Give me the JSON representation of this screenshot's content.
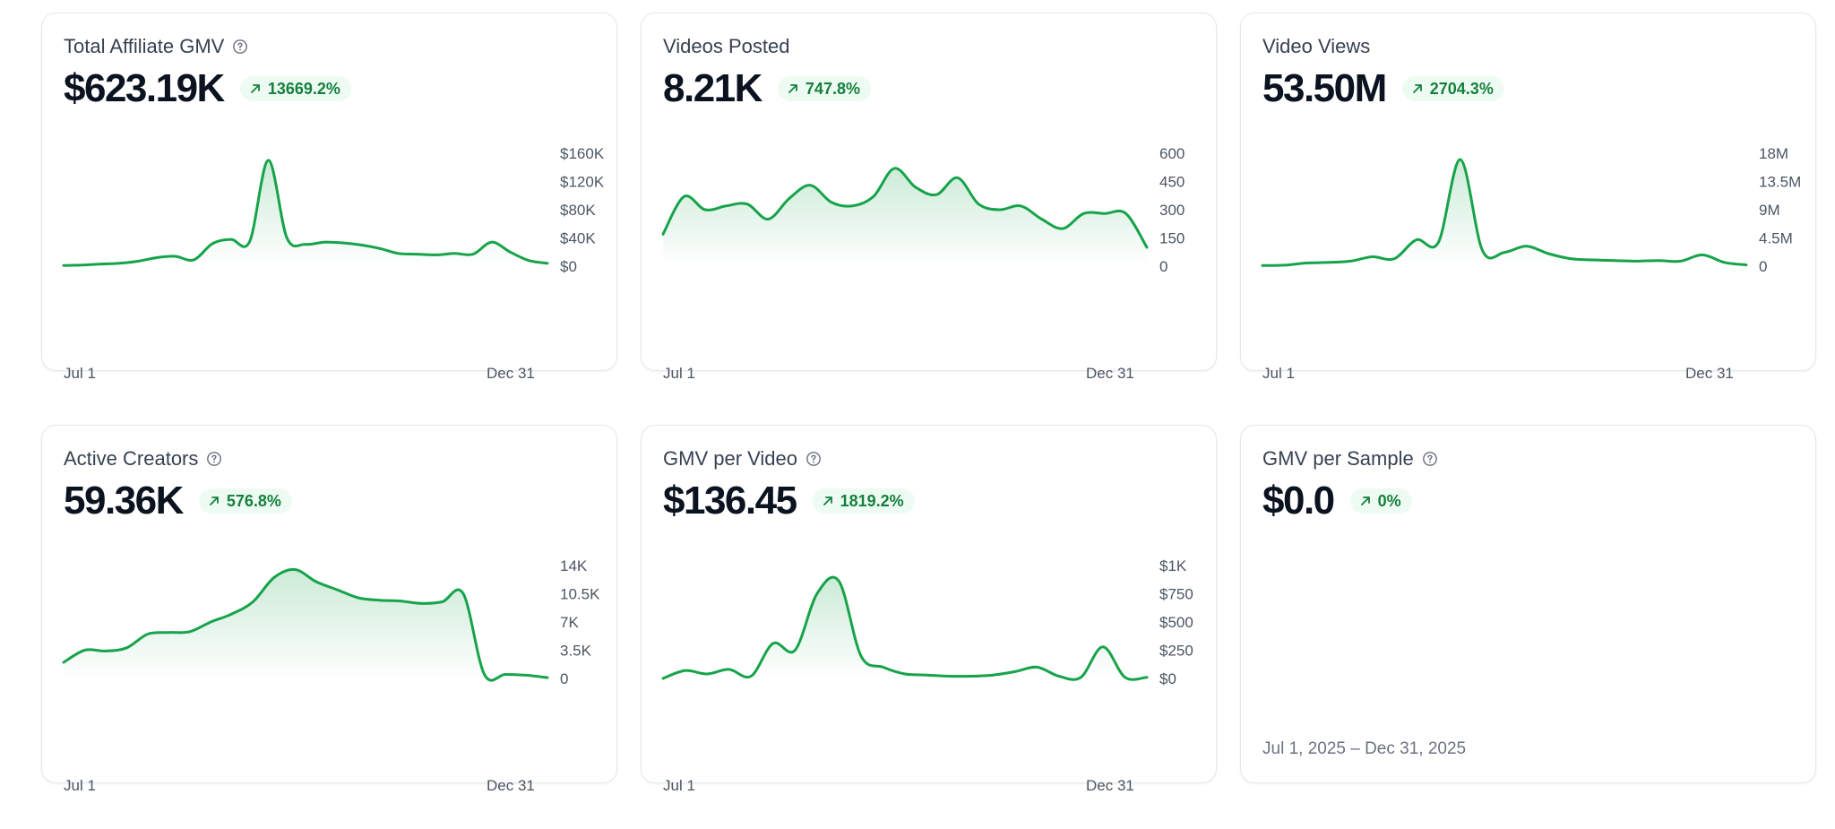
{
  "accent_color": "#16a34a",
  "badge_icon": "arrow-up-right-icon",
  "help_icon": "help-circle-icon",
  "cards": [
    {
      "title": "Total Affiliate GMV",
      "has_help": true,
      "value": "$623.19K",
      "change": "13669.2%",
      "x_start": "Jul 1",
      "x_end": "Dec 31",
      "y_ticks": [
        "$160K",
        "$120K",
        "$80K",
        "$40K",
        "$0"
      ],
      "chart_data": {
        "type": "area",
        "x_range": [
          "Jul 1",
          "Dec 31"
        ],
        "ylim": [
          0,
          160000
        ],
        "values": [
          1000,
          1500,
          3000,
          4000,
          7000,
          12000,
          14000,
          9000,
          32000,
          38000,
          35000,
          150000,
          40000,
          31000,
          34000,
          33000,
          30000,
          25000,
          18000,
          17000,
          16000,
          18000,
          17000,
          34000,
          20000,
          8000,
          4000
        ]
      }
    },
    {
      "title": "Videos Posted",
      "has_help": false,
      "value": "8.21K",
      "change": "747.8%",
      "x_start": "Jul 1",
      "x_end": "Dec 31",
      "y_ticks": [
        "600",
        "450",
        "300",
        "150",
        "0"
      ],
      "chart_data": {
        "type": "area",
        "x_range": [
          "Jul 1",
          "Dec 31"
        ],
        "ylim": [
          0,
          600
        ],
        "values": [
          170,
          370,
          300,
          320,
          330,
          250,
          360,
          430,
          340,
          320,
          370,
          520,
          420,
          380,
          470,
          330,
          300,
          320,
          250,
          200,
          280,
          280,
          280,
          100
        ]
      }
    },
    {
      "title": "Video Views",
      "has_help": false,
      "value": "53.50M",
      "change": "2704.3%",
      "x_start": "Jul 1",
      "x_end": "Dec 31",
      "y_ticks": [
        "18M",
        "13.5M",
        "9M",
        "4.5M",
        "0"
      ],
      "chart_data": {
        "type": "area",
        "x_range": [
          "Jul 1",
          "Dec 31"
        ],
        "ylim": [
          0,
          18000000
        ],
        "values": [
          100000,
          150000,
          500000,
          600000,
          800000,
          1500000,
          1200000,
          4200000,
          3800000,
          17000000,
          2500000,
          2200000,
          3200000,
          2000000,
          1200000,
          1000000,
          900000,
          800000,
          900000,
          800000,
          1800000,
          600000,
          200000
        ]
      }
    },
    {
      "title": "Active Creators",
      "has_help": true,
      "value": "59.36K",
      "change": "576.8%",
      "x_start": "Jul 1",
      "x_end": "Dec 31",
      "y_ticks": [
        "14K",
        "10.5K",
        "7K",
        "3.5K",
        "0"
      ],
      "chart_data": {
        "type": "area",
        "x_range": [
          "Jul 1",
          "Dec 31"
        ],
        "ylim": [
          0,
          14000
        ],
        "values": [
          2000,
          3500,
          3400,
          3800,
          5500,
          5700,
          5800,
          7000,
          8000,
          9500,
          12500,
          13500,
          12000,
          11000,
          10000,
          9700,
          9600,
          9300,
          9500,
          10500,
          500,
          500,
          400,
          100
        ]
      }
    },
    {
      "title": "GMV per Video",
      "has_help": true,
      "value": "$136.45",
      "change": "1819.2%",
      "x_start": "Jul 1",
      "x_end": "Dec 31",
      "y_ticks": [
        "$1K",
        "$750",
        "$500",
        "$250",
        "$0"
      ],
      "chart_data": {
        "type": "area",
        "x_range": [
          "Jul 1",
          "Dec 31"
        ],
        "ylim": [
          0,
          1000
        ],
        "values": [
          0,
          70,
          40,
          80,
          20,
          310,
          250,
          750,
          860,
          200,
          100,
          40,
          30,
          20,
          20,
          30,
          60,
          100,
          20,
          10,
          280,
          10,
          10
        ]
      }
    },
    {
      "title": "GMV per Sample",
      "has_help": true,
      "value": "$0.0",
      "change": "0%",
      "date_range": "Jul 1, 2025 – Dec 31, 2025"
    }
  ]
}
